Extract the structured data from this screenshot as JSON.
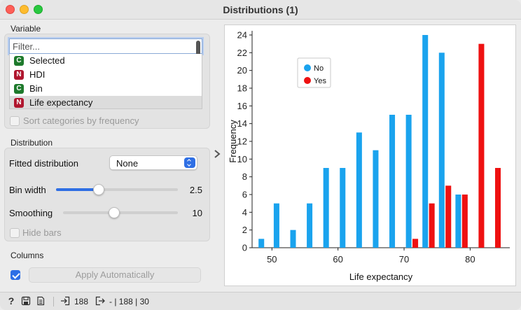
{
  "window": {
    "title": "Distributions (1)"
  },
  "variable": {
    "section_title": "Variable",
    "filter_placeholder": "Filter...",
    "items": [
      {
        "type": "C",
        "label": "Selected"
      },
      {
        "type": "N",
        "label": "HDI"
      },
      {
        "type": "C",
        "label": "Bin"
      },
      {
        "type": "N",
        "label": "Life expectancy",
        "selected": true
      }
    ],
    "sort_label": "Sort categories by frequency",
    "sort_checked": false
  },
  "distribution": {
    "section_title": "Distribution",
    "fitted_label": "Fitted distribution",
    "fitted_value": "None",
    "bin_width_label": "Bin width",
    "bin_width_value": "2.5",
    "smoothing_label": "Smoothing",
    "smoothing_value": "10",
    "hide_bars_label": "Hide bars",
    "hide_bars_checked": false
  },
  "columns": {
    "section_title": "Columns",
    "auto_checked": true,
    "apply_label": "Apply Automatically"
  },
  "status": {
    "input_count": "188",
    "output_text": "- | 188 | 30"
  },
  "colors": {
    "no": "#1aa3ee",
    "yes": "#ee1111",
    "accent": "#2f6fe4"
  },
  "chart_data": {
    "type": "bar",
    "xlabel": "Life expectancy",
    "ylabel": "Frequency",
    "xlim": [
      47,
      86
    ],
    "ylim": [
      0,
      24
    ],
    "x_ticks": [
      50,
      60,
      70,
      80
    ],
    "y_ticks": [
      0,
      2,
      4,
      6,
      8,
      10,
      12,
      14,
      16,
      18,
      20,
      22,
      24
    ],
    "legend": {
      "placement": "top-left"
    },
    "series": [
      {
        "name": "No",
        "color": "#1aa3ee",
        "x": [
          48.4,
          50.7,
          53.2,
          55.7,
          58.2,
          60.7,
          63.2,
          65.7,
          68.2,
          70.7,
          73.2,
          75.7,
          78.2
        ],
        "values": [
          1,
          5,
          2,
          5,
          9,
          9,
          13,
          11,
          15,
          15,
          24,
          22,
          6
        ]
      },
      {
        "name": "Yes",
        "color": "#ee1111",
        "x": [
          71.7,
          74.2,
          76.7,
          79.2,
          81.7,
          84.2
        ],
        "values": [
          1,
          5,
          7,
          6,
          23,
          9
        ]
      }
    ]
  }
}
